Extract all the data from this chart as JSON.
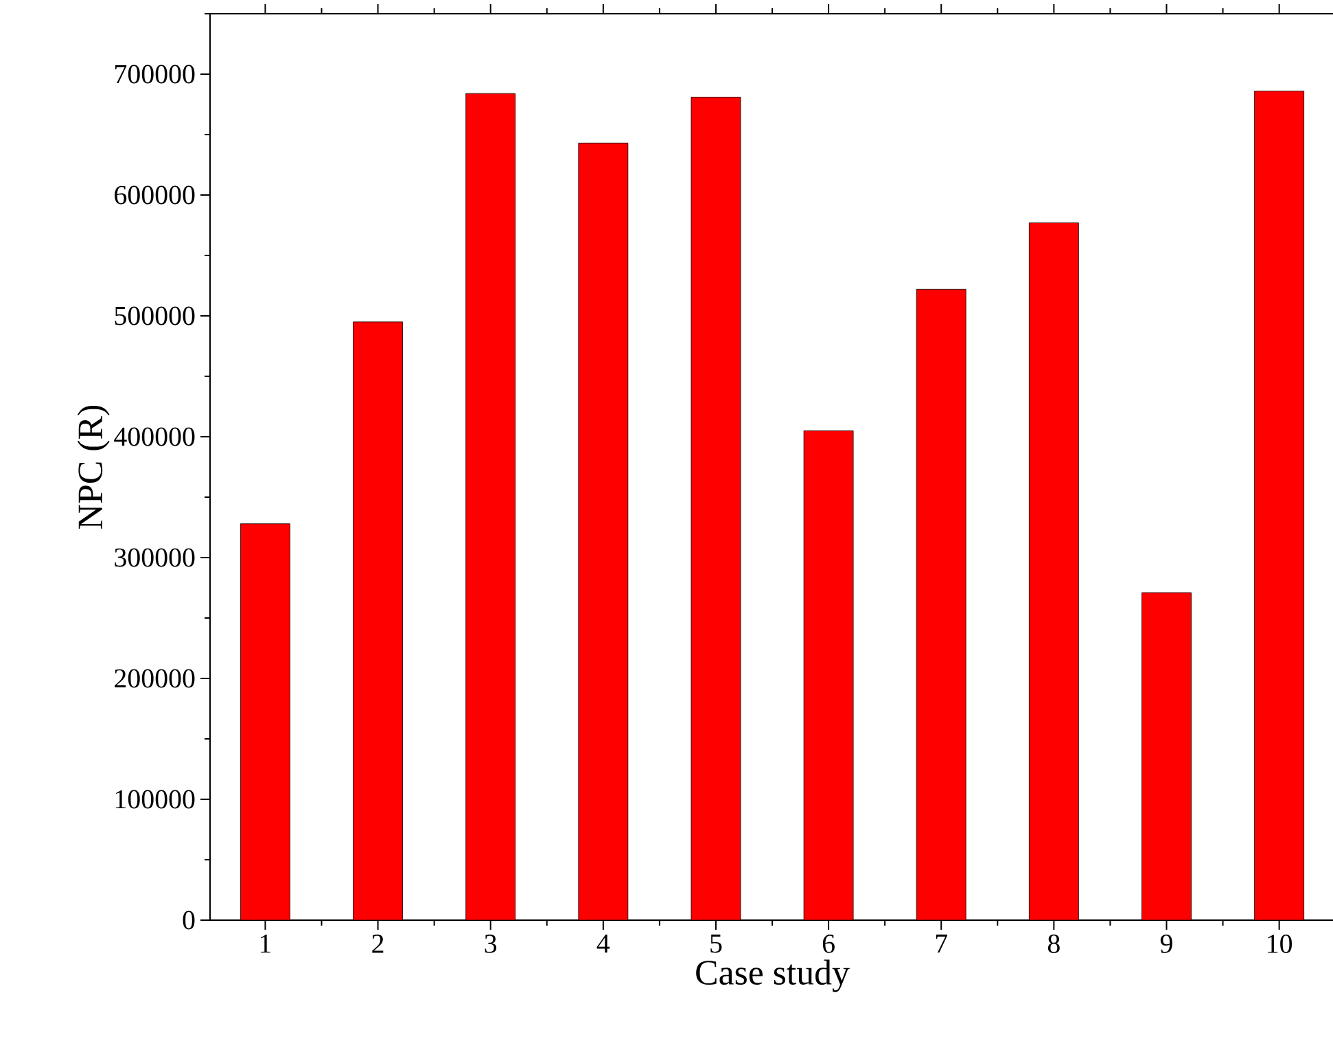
{
  "chart_data": {
    "type": "bar",
    "xlabel": "Case study",
    "ylabel": "NPC (R)",
    "categories": [
      "1",
      "2",
      "3",
      "4",
      "5",
      "6",
      "7",
      "8",
      "9",
      "10"
    ],
    "values": [
      328000,
      495000,
      684000,
      643000,
      681000,
      405000,
      522000,
      577000,
      271000,
      686000
    ],
    "color": "#ff0000",
    "ylim": [
      0,
      750000
    ],
    "yticks": [
      0,
      100000,
      200000,
      300000,
      400000,
      500000,
      600000,
      700000
    ],
    "grid": false
  }
}
